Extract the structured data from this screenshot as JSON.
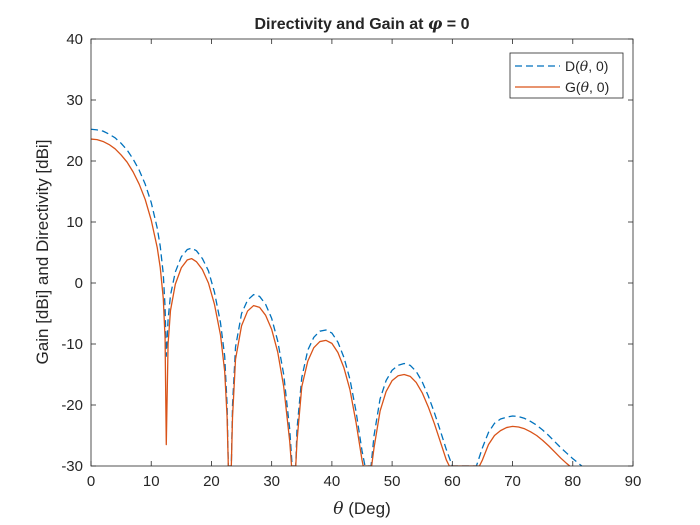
{
  "chart_data": {
    "type": "line",
    "title_prefix": "Directivity and Gain at ",
    "title_symbol": "φ",
    "title_suffix": " = 0",
    "xlabel_symbol": "θ",
    "xlabel_text": " (Deg)",
    "ylabel": "Gain [dBi] and Directivity [dBi]",
    "xlim": [
      0,
      90
    ],
    "ylim": [
      -30,
      40
    ],
    "xticks": [
      "0",
      "10",
      "20",
      "30",
      "40",
      "50",
      "60",
      "70",
      "80",
      "90"
    ],
    "yticks": [
      "-30",
      "-20",
      "-10",
      "0",
      "10",
      "20",
      "30",
      "40"
    ],
    "legend_position": "top-right",
    "series": [
      {
        "name_prefix": "D(",
        "name_symbol": "θ",
        "name_suffix": ", 0)",
        "style": "dashed",
        "color": "#0072BD",
        "points": [
          [
            0,
            25.2
          ],
          [
            1,
            25.1
          ],
          [
            2,
            24.9
          ],
          [
            3,
            24.4
          ],
          [
            4,
            23.8
          ],
          [
            5,
            22.9
          ],
          [
            6,
            21.8
          ],
          [
            7,
            20.3
          ],
          [
            8,
            18.5
          ],
          [
            9,
            16.2
          ],
          [
            10,
            13.2
          ],
          [
            11,
            9.0
          ],
          [
            11.5,
            6.0
          ],
          [
            12,
            1.5
          ],
          [
            12.3,
            -4.0
          ],
          [
            12.5,
            -12.0
          ],
          [
            12.8,
            -6.0
          ],
          [
            13.2,
            -2.0
          ],
          [
            14,
            1.8
          ],
          [
            15,
            4.3
          ],
          [
            16,
            5.5
          ],
          [
            16.7,
            5.7
          ],
          [
            17.5,
            5.3
          ],
          [
            18.5,
            4.0
          ],
          [
            19.5,
            2.0
          ],
          [
            20.5,
            -1.5
          ],
          [
            21.5,
            -6.5
          ],
          [
            22.2,
            -12.0
          ],
          [
            22.6,
            -20.0
          ],
          [
            22.8,
            -30.0
          ],
          [
            23.3,
            -30.0
          ],
          [
            23.5,
            -20.0
          ],
          [
            24,
            -10.5
          ],
          [
            25,
            -5.0
          ],
          [
            26,
            -2.8
          ],
          [
            27,
            -1.9
          ],
          [
            28,
            -2.2
          ],
          [
            29,
            -3.5
          ],
          [
            30,
            -5.8
          ],
          [
            31,
            -9.5
          ],
          [
            32,
            -15.0
          ],
          [
            33,
            -24.0
          ],
          [
            33.4,
            -30.0
          ],
          [
            34.0,
            -30.0
          ],
          [
            34.2,
            -24.0
          ],
          [
            35,
            -15.5
          ],
          [
            36,
            -11.0
          ],
          [
            37,
            -8.9
          ],
          [
            38,
            -7.9
          ],
          [
            39,
            -7.7
          ],
          [
            40,
            -8.2
          ],
          [
            41,
            -9.7
          ],
          [
            42,
            -12.2
          ],
          [
            43,
            -15.8
          ],
          [
            44,
            -21.0
          ],
          [
            45,
            -27.5
          ],
          [
            45.5,
            -30.0
          ],
          [
            46.5,
            -30.0
          ],
          [
            47,
            -25.0
          ],
          [
            48,
            -19.0
          ],
          [
            49,
            -16.0
          ],
          [
            50,
            -14.3
          ],
          [
            51,
            -13.5
          ],
          [
            52,
            -13.2
          ],
          [
            53,
            -13.5
          ],
          [
            54,
            -14.5
          ],
          [
            55,
            -16.2
          ],
          [
            56,
            -18.5
          ],
          [
            57,
            -21.2
          ],
          [
            58,
            -24.2
          ],
          [
            59,
            -27.3
          ],
          [
            60,
            -30.0
          ],
          [
            64,
            -30.0
          ],
          [
            65,
            -27.0
          ],
          [
            66,
            -24.5
          ],
          [
            67,
            -23.0
          ],
          [
            68,
            -22.3
          ],
          [
            69,
            -22.0
          ],
          [
            70,
            -21.8
          ],
          [
            71,
            -21.9
          ],
          [
            72,
            -22.2
          ],
          [
            73,
            -22.7
          ],
          [
            74,
            -23.3
          ],
          [
            75,
            -24.1
          ],
          [
            76,
            -25.0
          ],
          [
            77,
            -26.0
          ],
          [
            78,
            -27.0
          ],
          [
            79,
            -27.9
          ],
          [
            80,
            -28.8
          ],
          [
            81,
            -29.6
          ],
          [
            81.5,
            -30.0
          ]
        ]
      },
      {
        "name_prefix": "G(",
        "name_symbol": "θ",
        "name_suffix": ", 0)",
        "style": "solid",
        "color": "#D95319",
        "points": [
          [
            0,
            23.6
          ],
          [
            1,
            23.5
          ],
          [
            2,
            23.2
          ],
          [
            3,
            22.7
          ],
          [
            4,
            22.0
          ],
          [
            5,
            21.0
          ],
          [
            6,
            19.8
          ],
          [
            7,
            18.2
          ],
          [
            8,
            16.2
          ],
          [
            9,
            13.7
          ],
          [
            10,
            10.3
          ],
          [
            11,
            5.8
          ],
          [
            11.5,
            2.5
          ],
          [
            12,
            -2.5
          ],
          [
            12.3,
            -9.0
          ],
          [
            12.5,
            -26.5
          ],
          [
            12.8,
            -10.0
          ],
          [
            13.2,
            -4.5
          ],
          [
            14,
            -0.2
          ],
          [
            15,
            2.5
          ],
          [
            16,
            3.8
          ],
          [
            16.7,
            4.0
          ],
          [
            17.5,
            3.5
          ],
          [
            18.5,
            2.2
          ],
          [
            19.5,
            0.0
          ],
          [
            20.5,
            -3.5
          ],
          [
            21.5,
            -8.5
          ],
          [
            22.2,
            -14.5
          ],
          [
            22.6,
            -22.0
          ],
          [
            22.8,
            -30.0
          ],
          [
            23.3,
            -30.0
          ],
          [
            23.5,
            -22.0
          ],
          [
            24,
            -12.5
          ],
          [
            25,
            -7.0
          ],
          [
            26,
            -4.6
          ],
          [
            27,
            -3.7
          ],
          [
            28,
            -4.0
          ],
          [
            29,
            -5.3
          ],
          [
            30,
            -7.6
          ],
          [
            31,
            -11.3
          ],
          [
            32,
            -17.0
          ],
          [
            33,
            -26.0
          ],
          [
            33.3,
            -30.0
          ],
          [
            34.0,
            -30.0
          ],
          [
            34.2,
            -26.0
          ],
          [
            35,
            -17.0
          ],
          [
            36,
            -12.8
          ],
          [
            37,
            -10.6
          ],
          [
            38,
            -9.6
          ],
          [
            39,
            -9.4
          ],
          [
            40,
            -9.9
          ],
          [
            41,
            -11.4
          ],
          [
            42,
            -13.9
          ],
          [
            43,
            -17.5
          ],
          [
            44,
            -22.8
          ],
          [
            45,
            -29.0
          ],
          [
            45.2,
            -30.0
          ],
          [
            46.6,
            -30.0
          ],
          [
            47,
            -27.0
          ],
          [
            48,
            -21.0
          ],
          [
            49,
            -17.8
          ],
          [
            50,
            -16.0
          ],
          [
            51,
            -15.2
          ],
          [
            52,
            -15.0
          ],
          [
            53,
            -15.3
          ],
          [
            54,
            -16.3
          ],
          [
            55,
            -18.0
          ],
          [
            56,
            -20.3
          ],
          [
            57,
            -23.0
          ],
          [
            58,
            -26.0
          ],
          [
            59,
            -29.0
          ],
          [
            59.5,
            -30.0
          ],
          [
            64.5,
            -30.0
          ],
          [
            65,
            -29.0
          ],
          [
            66,
            -26.5
          ],
          [
            67,
            -25.0
          ],
          [
            68,
            -24.2
          ],
          [
            69,
            -23.7
          ],
          [
            70,
            -23.5
          ],
          [
            71,
            -23.6
          ],
          [
            72,
            -23.9
          ],
          [
            73,
            -24.4
          ],
          [
            74,
            -25.0
          ],
          [
            75,
            -25.8
          ],
          [
            76,
            -26.7
          ],
          [
            77,
            -27.7
          ],
          [
            78,
            -28.7
          ],
          [
            79,
            -29.6
          ],
          [
            79.5,
            -30.0
          ]
        ]
      }
    ]
  }
}
